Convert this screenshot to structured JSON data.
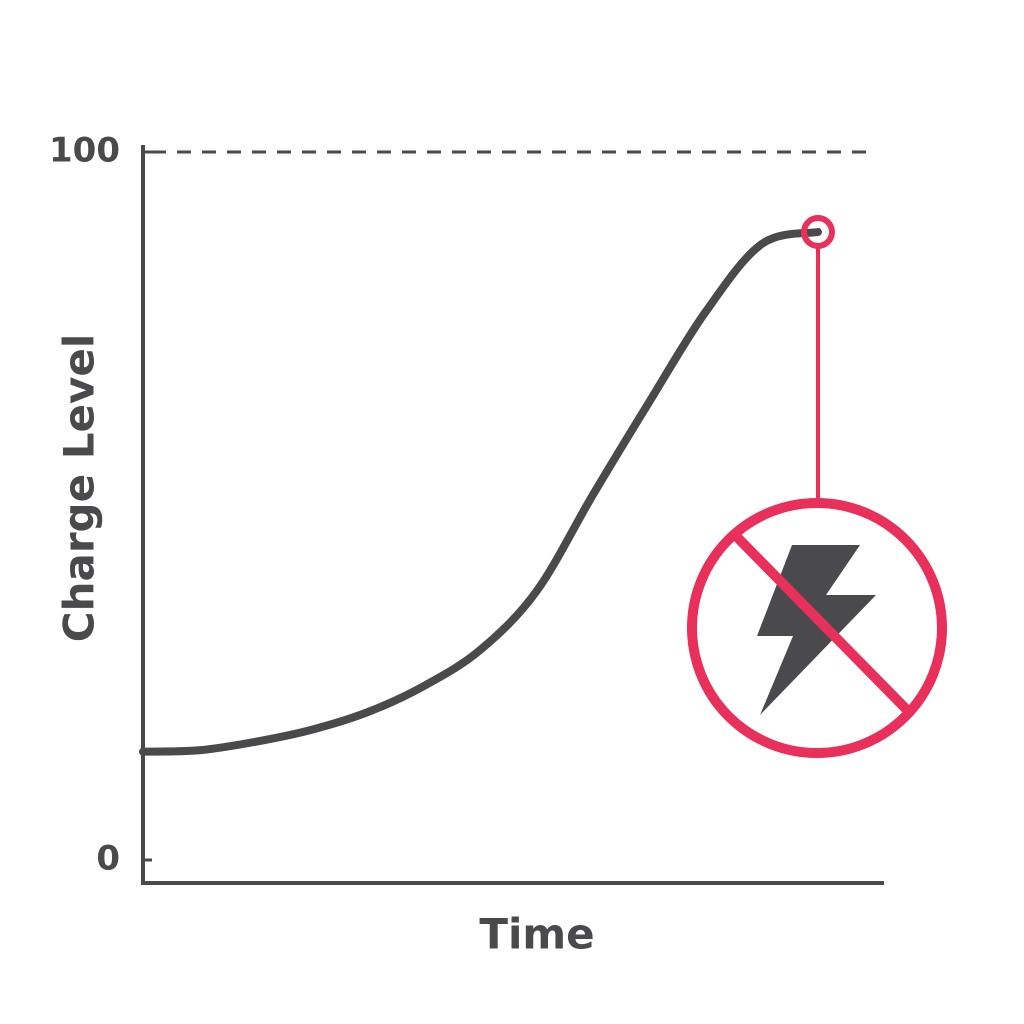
{
  "chart_data": {
    "type": "line",
    "x_label": "Time",
    "y_label": "Charge Level",
    "categories": [
      null,
      null,
      null,
      null,
      null,
      null,
      null,
      null,
      null,
      null,
      null,
      null,
      null
    ],
    "values": [
      15.3,
      15.5,
      16.7,
      18.4,
      20.9,
      24.6,
      29.7,
      38,
      51.6,
      64.7,
      77.4,
      87,
      88.7
    ],
    "color": "#4a4a4c",
    "highlight_color": "#e8305a",
    "ylim": [
      0,
      100
    ],
    "yticks": [
      0,
      100
    ],
    "grid": true
  }
}
